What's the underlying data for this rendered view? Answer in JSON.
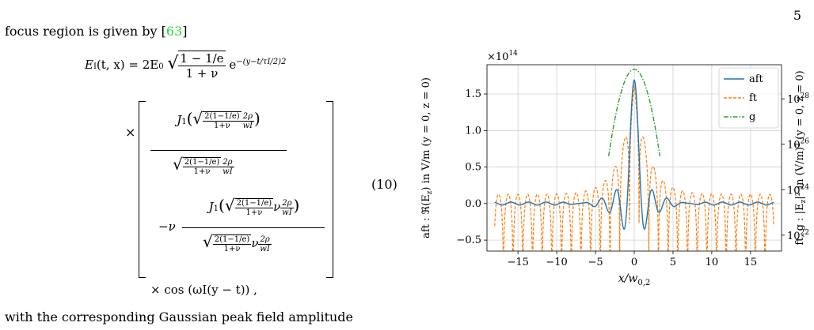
{
  "page": {
    "number": "5",
    "intro_text": "focus region is given by [",
    "citation": "63",
    "intro_close": "]",
    "outro_text": "with the corresponding Gaussian peak field amplitude",
    "equation_number": "(10)"
  },
  "equation": {
    "lhs": "E",
    "lhs_sub": "I",
    "lhs_args": "(t, x) = 2E",
    "e0_sub": "0",
    "sqrt1_num": "1 − 1/e",
    "sqrt1_den": "1 + ν",
    "exp_base": "e",
    "exp_inner": "−(",
    "exp_num": "y−t",
    "exp_den": "τI/2",
    "exp_close": ")",
    "exp_pow": "2",
    "times": "×",
    "j1": "J",
    "j1_sub": "1",
    "arg_num": "2(1−1/e)",
    "arg_den": "1+ν",
    "rho_num": "2ρ",
    "rho_den": "wI",
    "nu": "ν",
    "minus_nu": "−ν",
    "cos_term": "× cos (ωI(y − t)) ,"
  },
  "chart_data": {
    "type": "line",
    "title": "",
    "offset_text": "×10",
    "offset_exp": "14",
    "xlabel": "x/w",
    "xlabel_sub": "0,2",
    "ylabel_left": "aft : ℜ(E",
    "ylabel_left_sub": "z",
    "ylabel_left_tail": ") in V/m (y = 0,  z = 0)",
    "ylabel_right": "ft, g : |E",
    "ylabel_right_sub": "z",
    "ylabel_right_tail": "|² in (V/m)² (y = 0,  z = 0)",
    "xlim": [
      -19,
      19
    ],
    "ylim_left": [
      -0.65,
      1.9
    ],
    "ylim_right_log10": [
      21.3,
      29.5
    ],
    "x_ticks": [
      -15,
      -10,
      -5,
      0,
      5,
      10,
      15
    ],
    "x_tick_labels": [
      "−15",
      "−10",
      "−5",
      "0",
      "5",
      "10",
      "15"
    ],
    "y_left_ticks": [
      -0.5,
      0.0,
      0.5,
      1.0,
      1.5
    ],
    "y_left_tick_labels": [
      "−0.5",
      "0.0",
      "0.5",
      "1.0",
      "1.5"
    ],
    "y_right_ticks": [
      22,
      24,
      26,
      28
    ],
    "y_right_tick_base": "10",
    "y_right_tick_exps": [
      "22",
      "24",
      "26",
      "28"
    ],
    "grid": true,
    "legend_position": "top-right",
    "series": [
      {
        "name": "aft",
        "axis": "left",
        "color": "#1f77b4",
        "style": "solid",
        "x_range": [
          -18,
          18
        ],
        "peak": 1.69,
        "first_min": -0.56,
        "first_min_x": 0.9,
        "period_x": 1.25
      },
      {
        "name": "ft",
        "axis": "right",
        "color": "#ff7f0e",
        "style": "dashed",
        "x_range": [
          -18,
          18
        ],
        "peak_log10": 28.6,
        "envelope_edge_log10": 23.8,
        "period_x": 1.25
      },
      {
        "name": "g",
        "axis": "right",
        "color": "#2ca02c",
        "style": "dashdot",
        "x_range": [
          -3.3,
          3.3
        ],
        "peak_log10": 29.3,
        "width": 2.2
      }
    ]
  }
}
